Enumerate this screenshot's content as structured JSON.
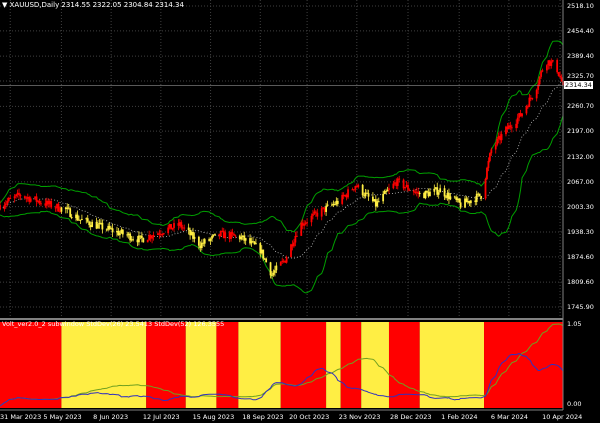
{
  "window": {
    "title": "XAUUSD,Daily  2314.55 2322.05 2304.84 2314.34",
    "dropdown_icon": "triangle-down-icon"
  },
  "indicator": {
    "label": "Volt_ver2.0_2 subwindow  StdDev(26) 23.5413  StdDev(52) 126.3555"
  },
  "colors": {
    "background": "#000000",
    "bull_regime": "#ff0000",
    "calm_regime": "#ffee44",
    "band_line": "#00a000",
    "ma_line": "#c0c0c0",
    "stddev26": "#3030c0",
    "stddev52": "#70a020",
    "grid": "#404040"
  },
  "chart_data": {
    "type": "candlestick",
    "symbol": "XAUUSD",
    "timeframe": "Daily",
    "current_price": "2314.34",
    "ylim": [
      1745.9,
      2518.1
    ],
    "price_ticks": [
      "2518.10",
      "2454.40",
      "2389.40",
      "2325.70",
      "2260.70",
      "2197.00",
      "2132.00",
      "2067.00",
      "2003.30",
      "1938.30",
      "1874.60",
      "1809.60",
      "1745.90"
    ],
    "time_ticks": [
      "31 Mar 2023",
      "5 May 2023",
      "8 Jun 2023",
      "12 Jul 2023",
      "15 Aug 2023",
      "18 Sep 2023",
      "20 Oct 2023",
      "23 Nov 2023",
      "28 Dec 2023",
      "1 Feb 2024",
      "6 Mar 2024",
      "10 Apr 2024"
    ],
    "time_tick_dates": [
      "2023-03-31",
      "2023-05-05",
      "2023-06-08",
      "2023-07-12",
      "2023-08-15",
      "2023-09-18",
      "2023-10-20",
      "2023-11-23",
      "2023-12-28",
      "2024-02-01",
      "2024-03-06",
      "2024-04-10"
    ],
    "close_path": [
      [
        "2023-03-24",
        2008
      ],
      [
        "2023-04-07",
        2033
      ],
      [
        "2023-04-27",
        2008
      ],
      [
        "2023-05-08",
        1995
      ],
      [
        "2023-05-18",
        1970
      ],
      [
        "2023-06-07",
        1944
      ],
      [
        "2023-06-28",
        1919
      ],
      [
        "2023-07-12",
        1940
      ],
      [
        "2023-07-25",
        1957
      ],
      [
        "2023-08-08",
        1906
      ],
      [
        "2023-08-22",
        1932
      ],
      [
        "2023-09-04",
        1925
      ],
      [
        "2023-09-18",
        1893
      ],
      [
        "2023-09-26",
        1829
      ],
      [
        "2023-10-05",
        1868
      ],
      [
        "2023-10-15",
        1957
      ],
      [
        "2023-10-29",
        1990
      ],
      [
        "2023-11-12",
        2020
      ],
      [
        "2023-11-22",
        2059
      ],
      [
        "2023-12-06",
        2008
      ],
      [
        "2023-12-20",
        2067
      ],
      [
        "2024-01-06",
        2033
      ],
      [
        "2024-01-19",
        2046
      ],
      [
        "2024-02-02",
        2008
      ],
      [
        "2024-02-16",
        2033
      ],
      [
        "2024-02-23",
        2149
      ],
      [
        "2024-03-04",
        2200
      ],
      [
        "2024-03-14",
        2238
      ],
      [
        "2024-03-24",
        2302
      ],
      [
        "2024-03-31",
        2379
      ],
      [
        "2024-04-07",
        2366
      ],
      [
        "2024-04-12",
        2314.34
      ]
    ],
    "regimes": [
      {
        "state": "red",
        "from": "2023-03-24",
        "to": "2023-05-05"
      },
      {
        "state": "yellow",
        "from": "2023-05-05",
        "to": "2023-07-02"
      },
      {
        "state": "red",
        "from": "2023-07-02",
        "to": "2023-07-29"
      },
      {
        "state": "yellow",
        "from": "2023-07-29",
        "to": "2023-08-19"
      },
      {
        "state": "red",
        "from": "2023-08-19",
        "to": "2023-09-03"
      },
      {
        "state": "yellow",
        "from": "2023-09-03",
        "to": "2023-10-02"
      },
      {
        "state": "red",
        "from": "2023-10-02",
        "to": "2023-11-02"
      },
      {
        "state": "yellow",
        "from": "2023-11-02",
        "to": "2023-11-12"
      },
      {
        "state": "red",
        "from": "2023-11-12",
        "to": "2023-11-26"
      },
      {
        "state": "yellow",
        "from": "2023-11-26",
        "to": "2023-12-15"
      },
      {
        "state": "red",
        "from": "2023-12-15",
        "to": "2024-01-05"
      },
      {
        "state": "yellow",
        "from": "2024-01-05",
        "to": "2024-02-18"
      },
      {
        "state": "red",
        "from": "2024-02-18",
        "to": "2024-04-12"
      }
    ],
    "sub_ticks": [
      "1.05",
      "0.00"
    ],
    "sub_ylim": [
      0,
      1.05
    ],
    "grid": true
  }
}
